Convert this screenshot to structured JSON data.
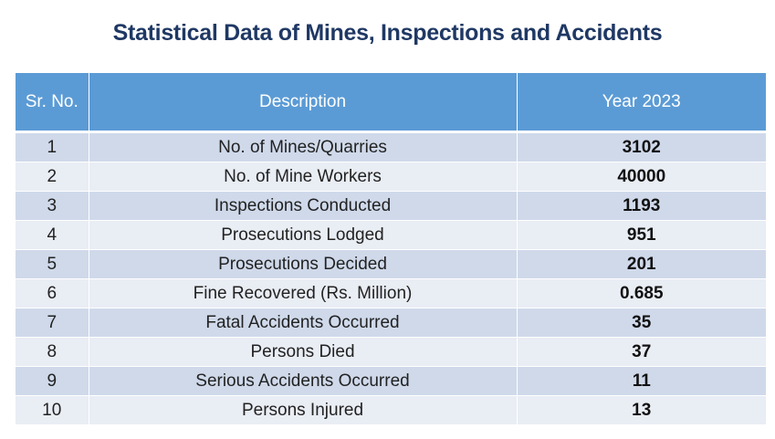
{
  "title": "Statistical Data of Mines, Inspections and Accidents",
  "colors": {
    "title": "#1F3864",
    "header": "#5B9BD5",
    "row_odd": "#CFD9EA",
    "row_even": "#E9EDF4"
  },
  "table": {
    "headers": [
      "Sr. No.",
      "Description",
      "Year 2023"
    ],
    "rows": [
      {
        "sr": "1",
        "description": "No. of Mines/Quarries",
        "value": "3102"
      },
      {
        "sr": "2",
        "description": "No. of Mine Workers",
        "value": "40000"
      },
      {
        "sr": "3",
        "description": "Inspections Conducted",
        "value": "1193"
      },
      {
        "sr": "4",
        "description": "Prosecutions Lodged",
        "value": "951"
      },
      {
        "sr": "5",
        "description": "Prosecutions Decided",
        "value": "201"
      },
      {
        "sr": "6",
        "description": "Fine Recovered (Rs. Million)",
        "value": "0.685"
      },
      {
        "sr": "7",
        "description": "Fatal Accidents Occurred",
        "value": "35"
      },
      {
        "sr": "8",
        "description": "Persons Died",
        "value": "37"
      },
      {
        "sr": "9",
        "description": "Serious Accidents Occurred",
        "value": "11"
      },
      {
        "sr": "10",
        "description": "Persons Injured",
        "value": "13"
      }
    ]
  }
}
